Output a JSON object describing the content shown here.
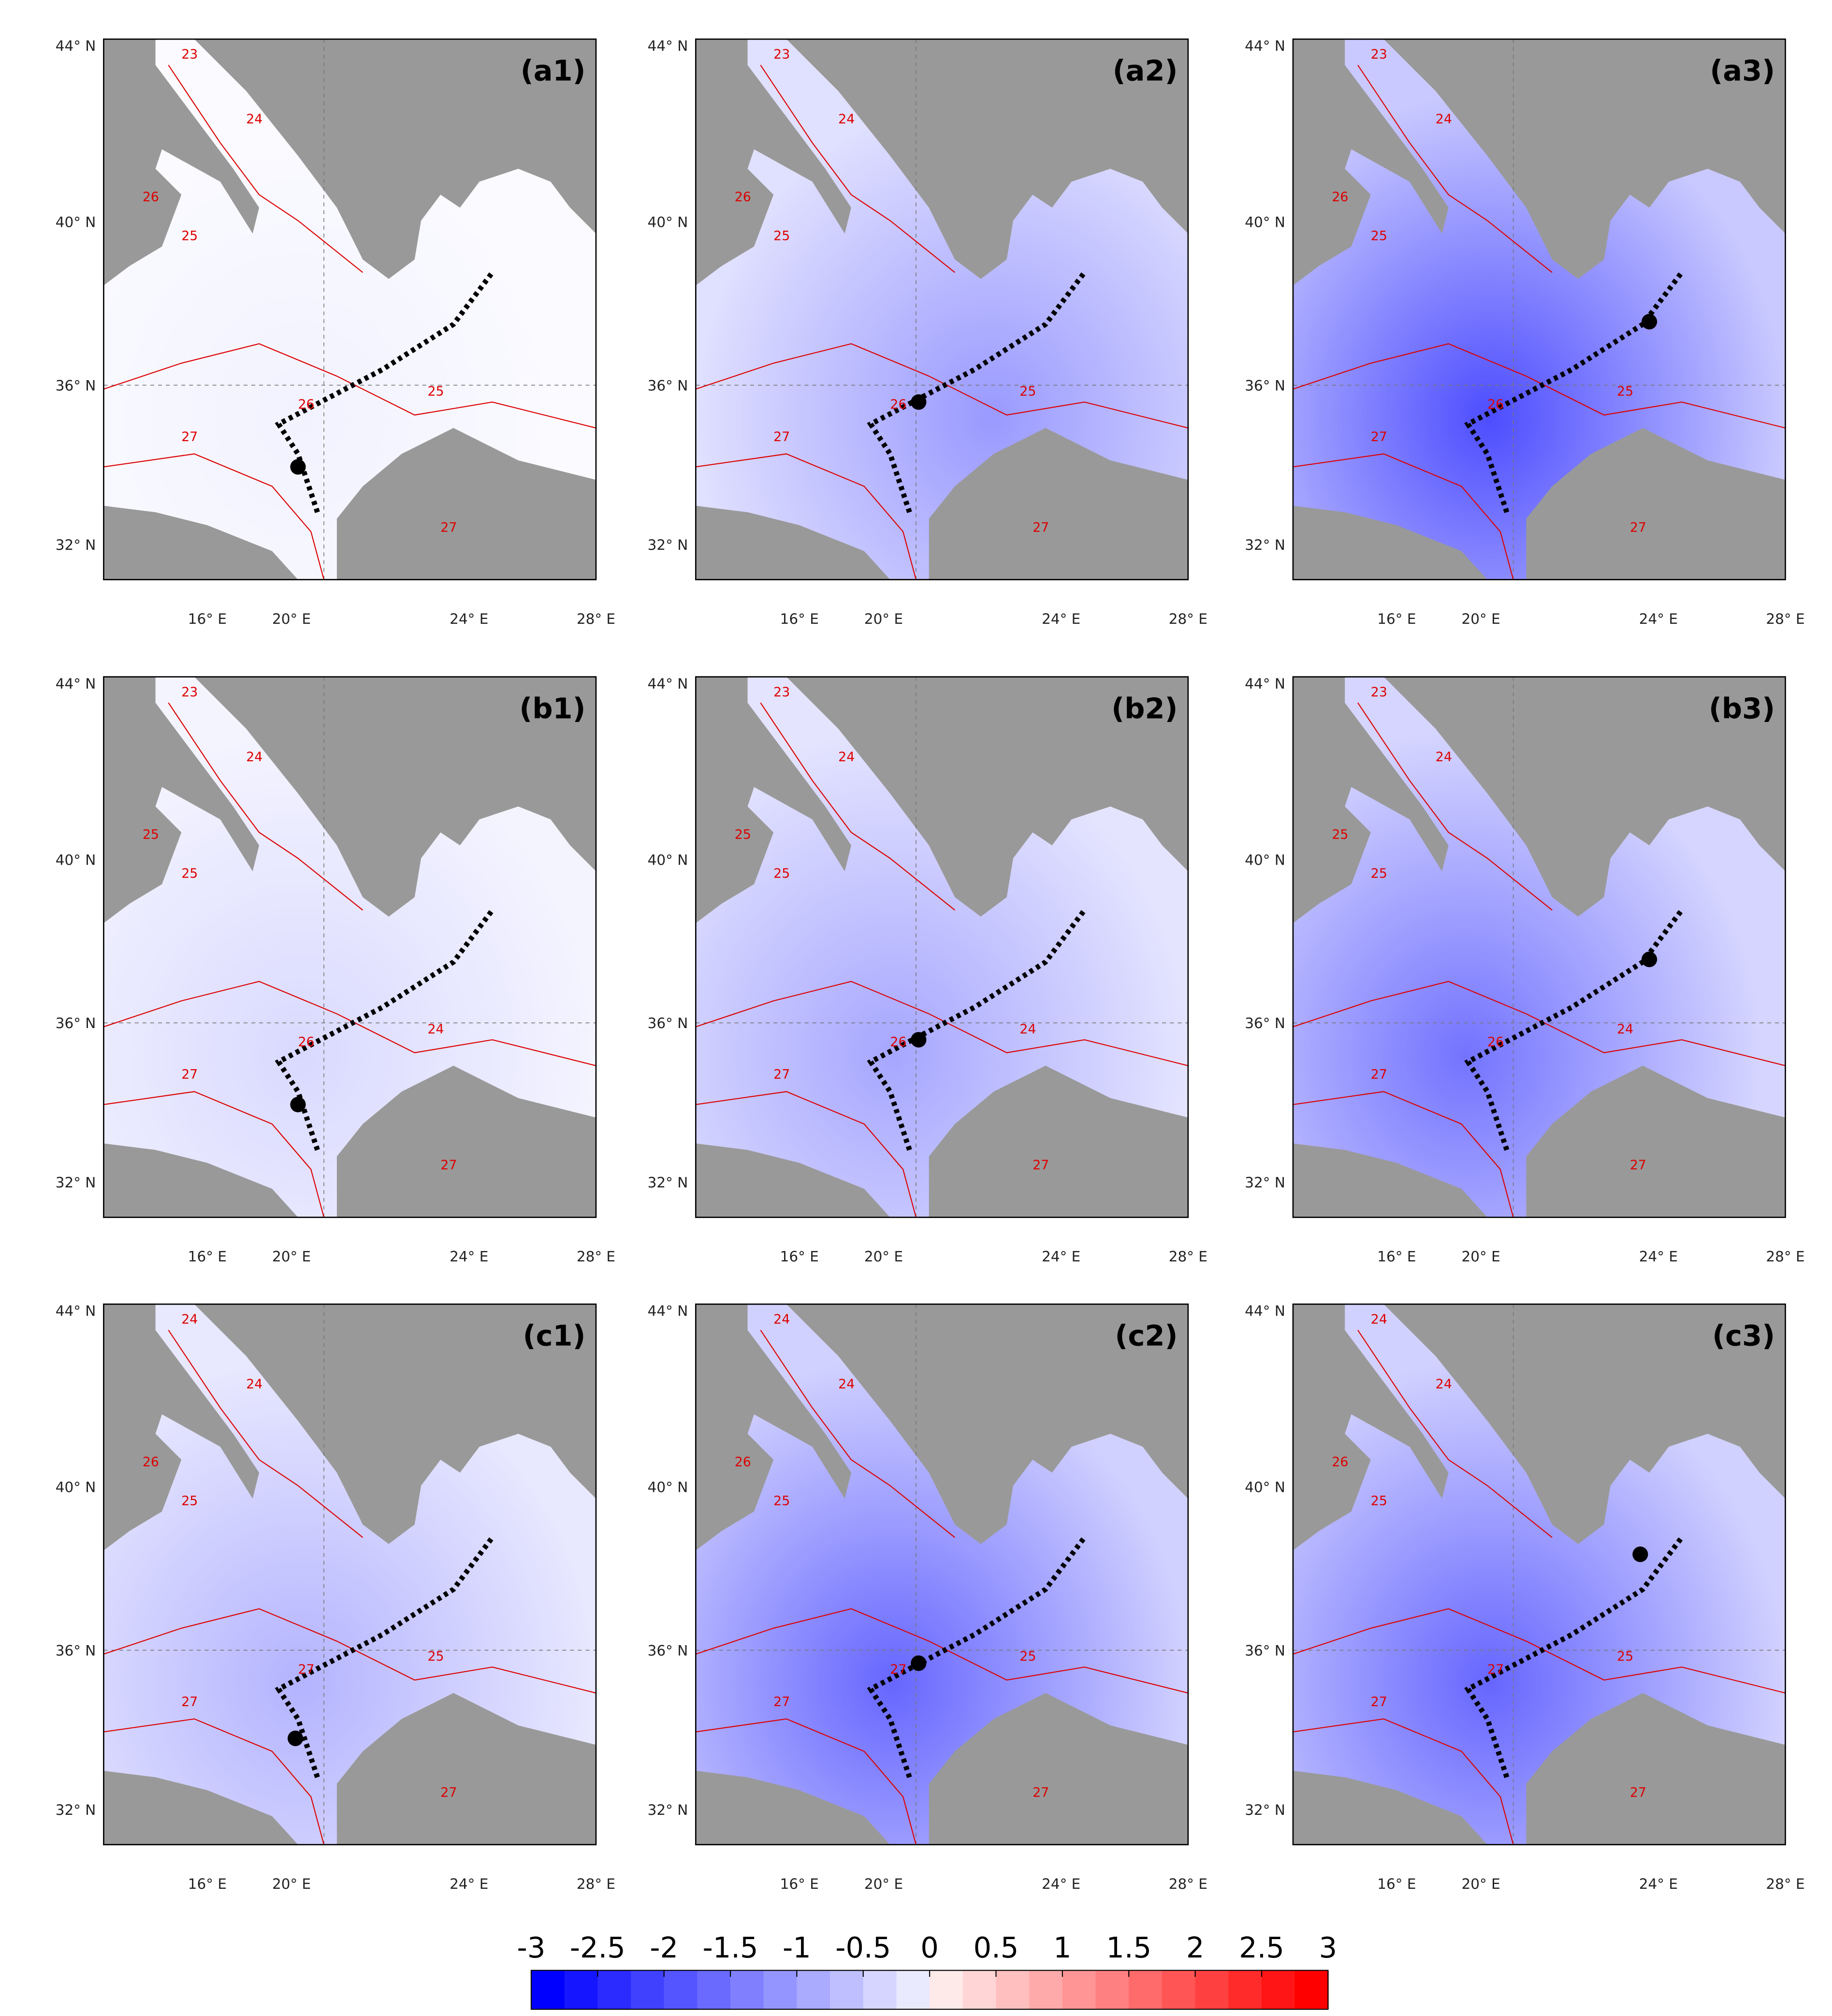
{
  "panels": [
    {
      "label": "(a1)",
      "contour_labels": [
        23,
        24,
        25,
        26,
        26,
        27,
        27,
        25
      ]
    },
    {
      "label": "(a2)",
      "contour_labels": [
        23,
        24,
        25,
        26,
        26,
        27,
        27,
        25
      ]
    },
    {
      "label": "(a3)",
      "contour_labels": [
        23,
        24,
        25,
        26,
        26,
        27,
        27,
        25
      ]
    },
    {
      "label": "(b1)",
      "contour_labels": [
        23,
        24,
        25,
        25,
        26,
        27,
        27,
        24
      ]
    },
    {
      "label": "(b2)",
      "contour_labels": [
        23,
        24,
        25,
        25,
        26,
        27,
        27,
        24
      ]
    },
    {
      "label": "(b3)",
      "contour_labels": [
        23,
        24,
        25,
        25,
        26,
        27,
        27,
        24
      ]
    },
    {
      "label": "(c1)",
      "contour_labels": [
        24,
        24,
        25,
        26,
        27,
        27,
        27,
        25
      ]
    },
    {
      "label": "(c2)",
      "contour_labels": [
        24,
        24,
        25,
        26,
        27,
        27,
        27,
        25
      ]
    },
    {
      "label": "(c3)",
      "contour_labels": [
        24,
        24,
        25,
        26,
        27,
        27,
        27,
        25
      ]
    }
  ],
  "lat_labels": [
    "44° N",
    "40° N",
    "36° N",
    "32° N"
  ],
  "lon_labels": [
    "16° E",
    "20° E",
    "24° E",
    "28° E"
  ],
  "colorbar": {
    "ticks": [
      -3,
      -2.5,
      -2,
      -1.5,
      -1,
      -0.5,
      0,
      0.5,
      1,
      1.5,
      2,
      2.5,
      3
    ],
    "colors": [
      "#0000ff",
      "#1515ff",
      "#2b2bff",
      "#4040ff",
      "#5555ff",
      "#6a6aff",
      "#8080ff",
      "#9595ff",
      "#aaaaff",
      "#bfbfff",
      "#d5d5ff",
      "#eaeaff",
      "#ffeaea",
      "#ffd5d5",
      "#ffbfbf",
      "#ffaaaa",
      "#ff9595",
      "#ff8080",
      "#ff6a6a",
      "#ff5555",
      "#ff4040",
      "#ff2b2b",
      "#ff1515",
      "#ff0000"
    ]
  }
}
